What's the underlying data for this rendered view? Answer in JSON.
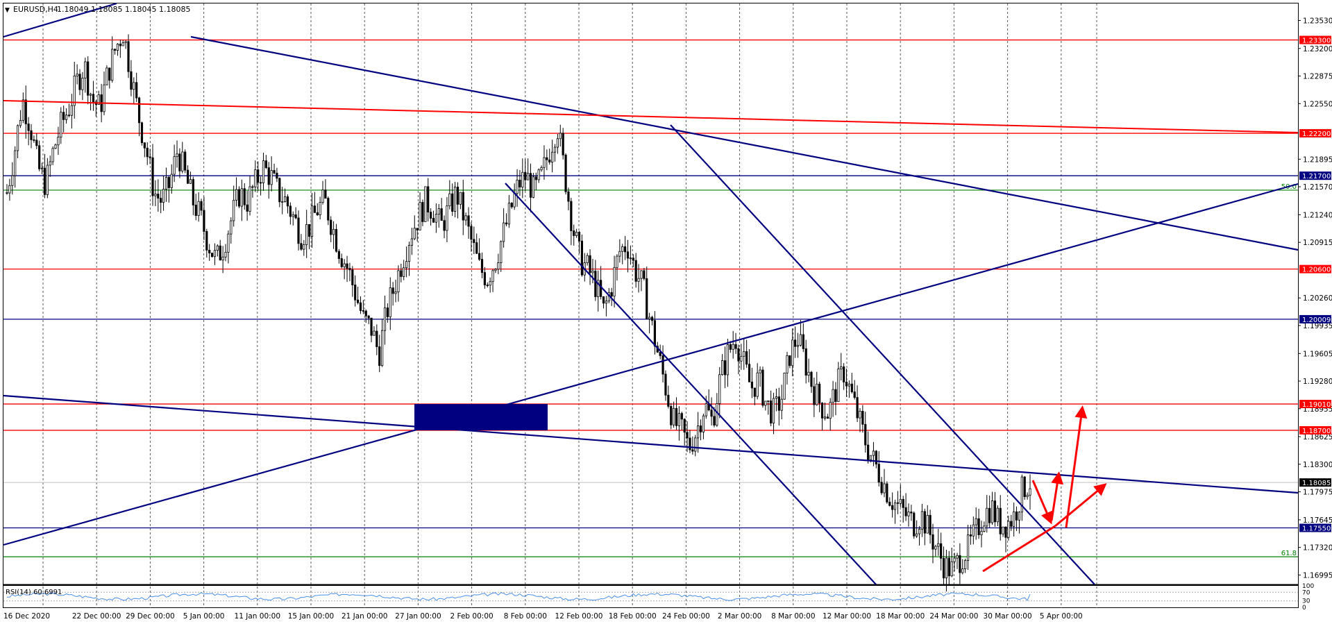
{
  "header": {
    "symbol": "EURUSD,H4",
    "ohlc": "1.18049 1.18085 1.18045 1.18085"
  },
  "chart_data": {
    "type": "candlestick",
    "symbol": "EURUSD",
    "timeframe": "H4",
    "price_axis_ticks": [
      "1.23530",
      "1.23200",
      "1.22875",
      "1.22550",
      "1.21895",
      "1.21570",
      "1.21240",
      "1.20915",
      "1.20260",
      "1.19935",
      "1.19605",
      "1.19280",
      "1.18955",
      "1.18625",
      "1.18300",
      "1.17975",
      "1.17645",
      "1.17320",
      "1.16995"
    ],
    "time_axis_labels": [
      "16 Dec 2020",
      "22 Dec 00:00",
      "29 Dec 00:00",
      "5 Jan 00:00",
      "11 Jan 00:00",
      "15 Jan 00:00",
      "21 Jan 00:00",
      "27 Jan 00:00",
      "2 Feb 00:00",
      "8 Feb 00:00",
      "12 Feb 00:00",
      "18 Feb 00:00",
      "24 Feb 00:00",
      "2 Mar 00:00",
      "8 Mar 00:00",
      "12 Mar 00:00",
      "18 Mar 00:00",
      "24 Mar 00:00",
      "30 Mar 00:00",
      "5 Apr 00:00"
    ],
    "ylim": [
      1.1685,
      1.2385
    ],
    "horizontal_levels": [
      {
        "price": 1.233,
        "label": "1.23300",
        "color": "#ff0000"
      },
      {
        "price": 1.222,
        "label": "1.22200",
        "color": "#ff0000"
      },
      {
        "price": 1.217,
        "label": "1.21700",
        "color": "#000080"
      },
      {
        "price": 1.206,
        "label": "1.20600",
        "color": "#ff0000"
      },
      {
        "price": 1.20009,
        "label": "1.20009",
        "color": "#000080"
      },
      {
        "price": 1.1901,
        "label": "1.19010",
        "color": "#ff0000"
      },
      {
        "price": 1.187,
        "label": "1.18700",
        "color": "#ff0000"
      },
      {
        "price": 1.1755,
        "label": "1.17550",
        "color": "#000080"
      }
    ],
    "fib_levels": [
      {
        "price": 1.2153,
        "label": "50.0",
        "color": "#008000"
      },
      {
        "price": 1.1721,
        "label": "61.8",
        "color": "#008000"
      }
    ],
    "current_price": {
      "price": 1.18085,
      "label": "1.18085"
    },
    "price_path": [
      1.215,
      1.22,
      1.226,
      1.223,
      1.218,
      1.216,
      1.22,
      1.223,
      1.225,
      1.228,
      1.23,
      1.226,
      1.225,
      1.229,
      1.232,
      1.234,
      1.229,
      1.224,
      1.22,
      1.215,
      1.214,
      1.216,
      1.22,
      1.217,
      1.214,
      1.212,
      1.209,
      1.207,
      1.209,
      1.212,
      1.215,
      1.214,
      1.216,
      1.218,
      1.217,
      1.215,
      1.214,
      1.212,
      1.21,
      1.211,
      1.213,
      1.214,
      1.211,
      1.208,
      1.206,
      1.203,
      1.2,
      1.199,
      1.196,
      1.201,
      1.204,
      1.207,
      1.21,
      1.212,
      1.214,
      1.213,
      1.211,
      1.213,
      1.215,
      1.212,
      1.209,
      1.206,
      1.205,
      1.207,
      1.21,
      1.213,
      1.216,
      1.217,
      1.215,
      1.217,
      1.22,
      1.223,
      1.217,
      1.211,
      1.207,
      1.206,
      1.204,
      1.201,
      1.204,
      1.208,
      1.209,
      1.206,
      1.204,
      1.2,
      1.196,
      1.192,
      1.188,
      1.187,
      1.185,
      1.187,
      1.19,
      1.188,
      1.193,
      1.196,
      1.198,
      1.195,
      1.192,
      1.193,
      1.19,
      1.189,
      1.191,
      1.196,
      1.198,
      1.195,
      1.192,
      1.19,
      1.189,
      1.192,
      1.194,
      1.191,
      1.188,
      1.185,
      1.183,
      1.181,
      1.179,
      1.178,
      1.177,
      1.176,
      1.177,
      1.175,
      1.173,
      1.171,
      1.1705,
      1.172,
      1.173,
      1.175,
      1.177,
      1.178,
      1.176,
      1.176,
      1.177,
      1.18,
      1.1809
    ],
    "drawn_lines_color": "#000080",
    "arrows_color": "#ff0000",
    "rsi": {
      "label": "RSI(14) 60.6991",
      "levels": [
        "100",
        "70",
        "30",
        "0"
      ],
      "value": 60.6991
    }
  }
}
